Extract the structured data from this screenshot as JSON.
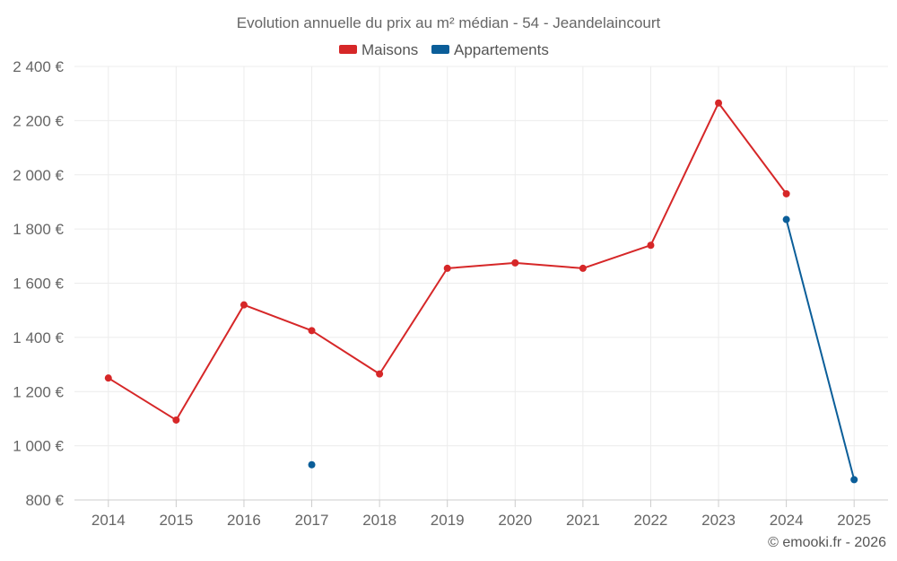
{
  "chart_data": {
    "type": "line",
    "title": "Evolution annuelle du prix au m² médian - 54 - Jeandelaincourt",
    "categories": [
      "2014",
      "2015",
      "2016",
      "2017",
      "2018",
      "2019",
      "2020",
      "2021",
      "2022",
      "2023",
      "2024",
      "2025"
    ],
    "ylim": [
      800,
      2400
    ],
    "yticks": [
      800,
      1000,
      1200,
      1400,
      1600,
      1800,
      2000,
      2200,
      2400
    ],
    "ytick_labels": [
      "800 €",
      "1 000 €",
      "1 200 €",
      "1 400 €",
      "1 600 €",
      "1 800 €",
      "2 000 €",
      "2 200 €",
      "2 400 €"
    ],
    "grid": true,
    "legend_position": "top-center",
    "series": [
      {
        "name": "Maisons",
        "color": "#d62728",
        "values": [
          1250,
          1095,
          1520,
          1425,
          1265,
          1655,
          1675,
          1655,
          1740,
          2265,
          1930,
          null
        ]
      },
      {
        "name": "Appartements",
        "color": "#0b5e99",
        "values": [
          null,
          null,
          null,
          930,
          null,
          null,
          null,
          null,
          null,
          null,
          1835,
          875
        ]
      }
    ]
  },
  "credit": "© emooki.fr - 2026"
}
